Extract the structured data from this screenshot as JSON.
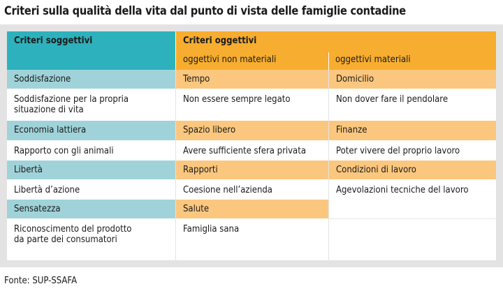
{
  "title": "Criteri sulla qualità della vita dal punto di vista delle famiglie contadine",
  "header": {
    "subjective": "Criteri soggettivi",
    "objective": "Criteri oggettivi",
    "non_material": "oggettivi non materiali",
    "material": "oggettivi materiali"
  },
  "rows": [
    {
      "s": "Soddisfazione",
      "n": "Tempo",
      "m": "Domicilio"
    },
    {
      "s": "Soddisfazione per la propria",
      "s2": "situazione di vita",
      "n": "Non essere sempre legato",
      "m": "Non dover fare il pendolare"
    },
    {
      "s": "Economia lattiera",
      "n": "Spazio libero",
      "m": "Finanze"
    },
    {
      "s": "Rapporto con gli animali",
      "n": "Avere sufficiente sfera privata",
      "m": "Poter vivere del proprio lavoro"
    },
    {
      "s": "Libertà",
      "n": "Rapporti",
      "m": "Condizioni di lavoro"
    },
    {
      "s": "Libertà d’azione",
      "n": "Coesione nell’azienda",
      "m": "Agevolazioni tecniche del lavoro"
    },
    {
      "s": "Sensatezza",
      "n": "Salute",
      "m": ""
    },
    {
      "s": "Riconoscimento del prodotto",
      "s2": "da parte dei consumatori",
      "n": "Famiglia sana",
      "m": ""
    }
  ],
  "source": "Fonte: SUP-SSAFA",
  "colors": {
    "teal_header": "#2db1bd",
    "teal_row": "#9fd3d9",
    "orange_header": "#f7ad2f",
    "orange_row": "#fbc77e",
    "frame": "#e3e3e3"
  }
}
